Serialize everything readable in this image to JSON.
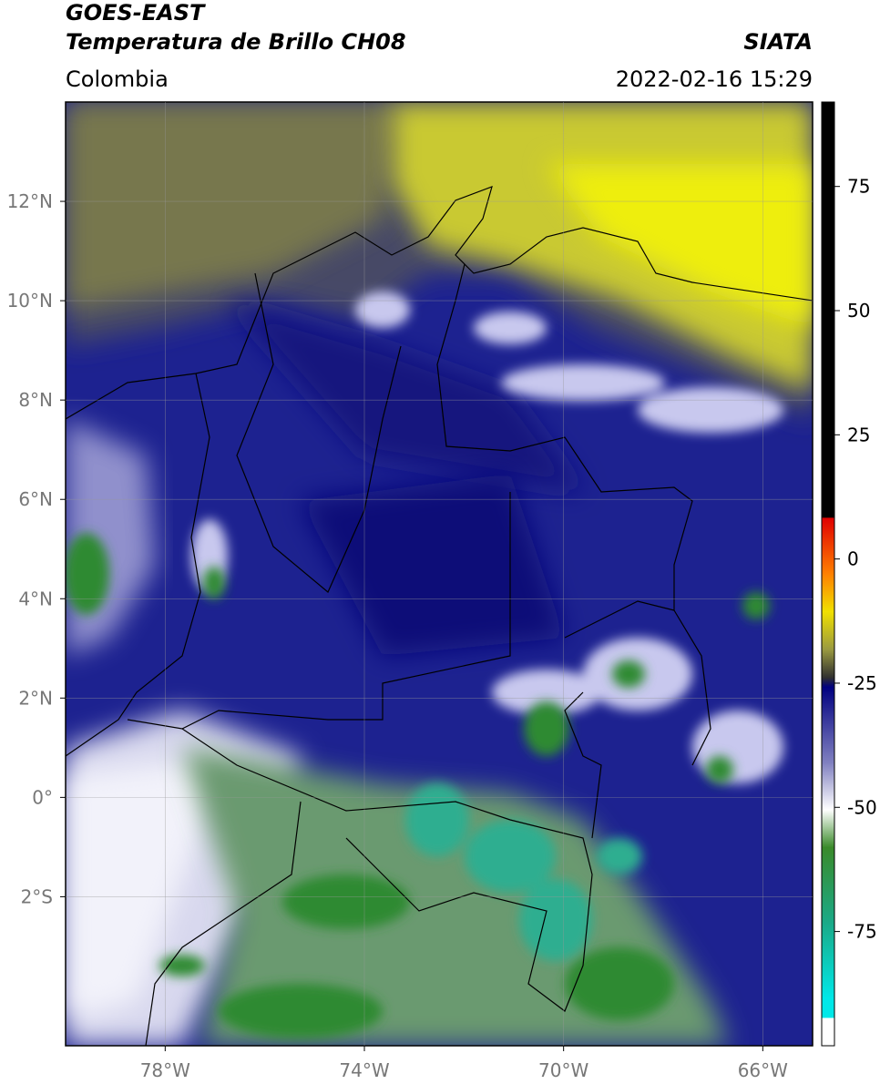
{
  "header": {
    "title_line1": "GOES-EAST",
    "title_line2": "Temperatura de Brillo CH08",
    "region": "Colombia",
    "source": "SIATA",
    "datetime": "2022-02-16 15:29"
  },
  "chart_data": {
    "type": "map",
    "xlim": [
      -80,
      -65
    ],
    "ylim": [
      -5,
      14
    ],
    "xticks": [
      {
        "value": -78,
        "label": "78°W"
      },
      {
        "value": -74,
        "label": "74°W"
      },
      {
        "value": -70,
        "label": "70°W"
      },
      {
        "value": -66,
        "label": "66°W"
      }
    ],
    "yticks": [
      {
        "value": 12,
        "label": "12°N"
      },
      {
        "value": 10,
        "label": "10°N"
      },
      {
        "value": 8,
        "label": "8°N"
      },
      {
        "value": 6,
        "label": "6°N"
      },
      {
        "value": 4,
        "label": "4°N"
      },
      {
        "value": 2,
        "label": "2°N"
      },
      {
        "value": 0,
        "label": "0°"
      },
      {
        "value": -2,
        "label": "2°S"
      }
    ],
    "grid": true,
    "colorbar": {
      "clim": [
        -98,
        92
      ],
      "ticks": [
        75,
        50,
        25,
        0,
        -25,
        -50,
        -75
      ]
    }
  }
}
